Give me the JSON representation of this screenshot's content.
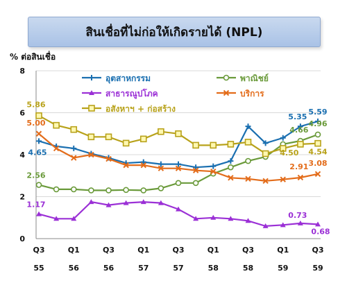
{
  "title": "สินเชื่อที่ไม่ก่อให้เกิดรายได้ (NPL)",
  "chart_data": {
    "type": "line",
    "ylabel": "% ต่อสินเชื่อ",
    "ylim": [
      0,
      8
    ],
    "yticks": [
      "0",
      "2",
      "4",
      "6",
      "8"
    ],
    "x_quarter_labels": [
      "Q3",
      "Q1",
      "Q3",
      "Q1",
      "Q3",
      "Q1",
      "Q3",
      "Q1",
      "Q3"
    ],
    "x_year_labels": [
      "55",
      "56",
      "56",
      "57",
      "57",
      "58",
      "58",
      "59",
      "59"
    ],
    "legend_position": "top",
    "series": [
      {
        "name": "อุตสาหกรรม",
        "color": "#1a6fb0",
        "marker": "plus",
        "values": [
          4.65,
          4.4,
          4.3,
          4.05,
          3.85,
          3.6,
          3.65,
          3.55,
          3.55,
          3.4,
          3.45,
          3.7,
          5.35,
          4.55,
          4.8,
          5.35,
          5.59
        ],
        "labels": [
          {
            "i": 0,
            "text": "4.65"
          },
          {
            "i": 15,
            "text": "5.35"
          },
          {
            "i": 16,
            "text": "5.59"
          }
        ]
      },
      {
        "name": "พาณิชย์",
        "color": "#6a9a3a",
        "marker": "circle",
        "values": [
          2.56,
          2.35,
          2.35,
          2.3,
          2.3,
          2.32,
          2.3,
          2.4,
          2.65,
          2.65,
          3.1,
          3.4,
          3.7,
          3.9,
          4.5,
          4.66,
          4.96
        ],
        "labels": [
          {
            "i": 0,
            "text": "2.56"
          },
          {
            "i": 15,
            "text": "4.66"
          },
          {
            "i": 16,
            "text": "4.96"
          }
        ]
      },
      {
        "name": "สาธารณูปโภค",
        "color": "#9b30d6",
        "marker": "triangle",
        "values": [
          1.17,
          0.95,
          0.95,
          1.75,
          1.6,
          1.7,
          1.75,
          1.7,
          1.4,
          0.95,
          1.0,
          0.95,
          0.85,
          0.6,
          0.65,
          0.73,
          0.68
        ],
        "labels": [
          {
            "i": 0,
            "text": "1.17"
          },
          {
            "i": 15,
            "text": "0.73"
          },
          {
            "i": 16,
            "text": "0.68"
          }
        ]
      },
      {
        "name": "บริการ",
        "color": "#e36c1a",
        "marker": "x",
        "values": [
          5.0,
          4.3,
          3.85,
          4.0,
          3.8,
          3.5,
          3.5,
          3.35,
          3.35,
          3.25,
          3.2,
          2.9,
          2.85,
          2.75,
          2.82,
          2.91,
          3.08
        ],
        "labels": [
          {
            "i": 0,
            "text": "5.00"
          },
          {
            "i": 15,
            "text": "2.91"
          },
          {
            "i": 16,
            "text": "3.08"
          }
        ]
      },
      {
        "name": "อสังหาฯ + ก่อสร้าง",
        "color": "#b8a21a",
        "marker": "square",
        "values": [
          5.86,
          5.4,
          5.2,
          4.85,
          4.85,
          4.55,
          4.75,
          5.1,
          5.0,
          4.45,
          4.45,
          4.5,
          4.6,
          4.05,
          4.3,
          4.5,
          4.54
        ],
        "labels": [
          {
            "i": 0,
            "text": "5.86"
          },
          {
            "i": 15,
            "text": "4.50"
          },
          {
            "i": 16,
            "text": "4.54"
          }
        ]
      }
    ]
  }
}
